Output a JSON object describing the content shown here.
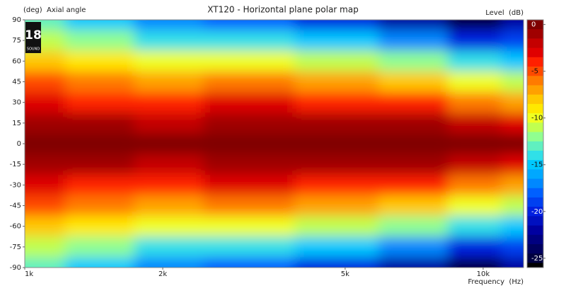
{
  "chart_data": {
    "type": "heatmap",
    "title": "XT120 - Horizontal plane polar map",
    "y_label": "(deg)  Axial angle",
    "x_label": "Frequency  (Hz)",
    "colorbar_label": "Level  (dB)",
    "logo": {
      "number": "18",
      "brand": "SOUND"
    },
    "log_x": true,
    "x": [
      1000,
      1500,
      2000,
      3000,
      5000,
      7000,
      10000,
      12000
    ],
    "y": [
      90,
      75,
      60,
      45,
      30,
      15,
      0,
      -15,
      -30,
      -45,
      -60,
      -75,
      -90
    ],
    "z": [
      [
        -13,
        -15,
        -17,
        -18,
        -20,
        -22,
        -25,
        -22
      ],
      [
        -11,
        -12,
        -14,
        -14,
        -15,
        -17,
        -20,
        -19
      ],
      [
        -8,
        -9,
        -10,
        -10,
        -11,
        -12,
        -14,
        -15
      ],
      [
        -5,
        -6,
        -7,
        -6,
        -7,
        -8,
        -10,
        -11
      ],
      [
        -3,
        -3.5,
        -4,
        -3,
        -4,
        -4,
        -6,
        -7
      ],
      [
        -1,
        -1,
        -1.5,
        -1,
        -1,
        -1,
        -2,
        -3
      ],
      [
        0,
        0,
        0,
        0,
        0,
        0,
        0,
        0
      ],
      [
        -1,
        -1,
        -1.5,
        -1,
        -1,
        -1,
        -2,
        -3
      ],
      [
        -3,
        -3.5,
        -4,
        -3,
        -4,
        -4,
        -6,
        -7
      ],
      [
        -5,
        -6,
        -7,
        -6,
        -7,
        -8,
        -10,
        -11
      ],
      [
        -8,
        -9,
        -10,
        -10,
        -11,
        -12,
        -14,
        -15
      ],
      [
        -11,
        -12,
        -14,
        -14,
        -15,
        -17,
        -20,
        -19
      ],
      [
        -13,
        -15,
        -17,
        -18,
        -20,
        -22,
        -25,
        -22
      ]
    ],
    "xlim": [
      1000,
      12250
    ],
    "xticks": [
      {
        "value": 1000,
        "label": "1k"
      },
      {
        "value": 2000,
        "label": "2k"
      },
      {
        "value": 5000,
        "label": "5k"
      },
      {
        "value": 10000,
        "label": "10k"
      }
    ],
    "ylim": [
      -90,
      90
    ],
    "yticks": [
      90,
      75,
      60,
      45,
      30,
      15,
      0,
      -15,
      -30,
      -45,
      -60,
      -75,
      -90
    ],
    "zlim": [
      -26,
      0.5
    ],
    "zticks": [
      0,
      -5,
      -10,
      -15,
      -20,
      -25
    ],
    "colorscale": [
      "#7f0000",
      "#a00000",
      "#c40000",
      "#e00000",
      "#ff2000",
      "#ff4a00",
      "#ff7a00",
      "#ffa000",
      "#ffc800",
      "#ffe800",
      "#f0ff20",
      "#c0ff50",
      "#90ff90",
      "#60f0c0",
      "#30e0e8",
      "#00c8ff",
      "#00a8ff",
      "#0088ff",
      "#0060ff",
      "#0040f0",
      "#0020e0",
      "#0010c0",
      "#0000a0",
      "#000080",
      "#000060",
      "#000040",
      "#000000"
    ]
  }
}
